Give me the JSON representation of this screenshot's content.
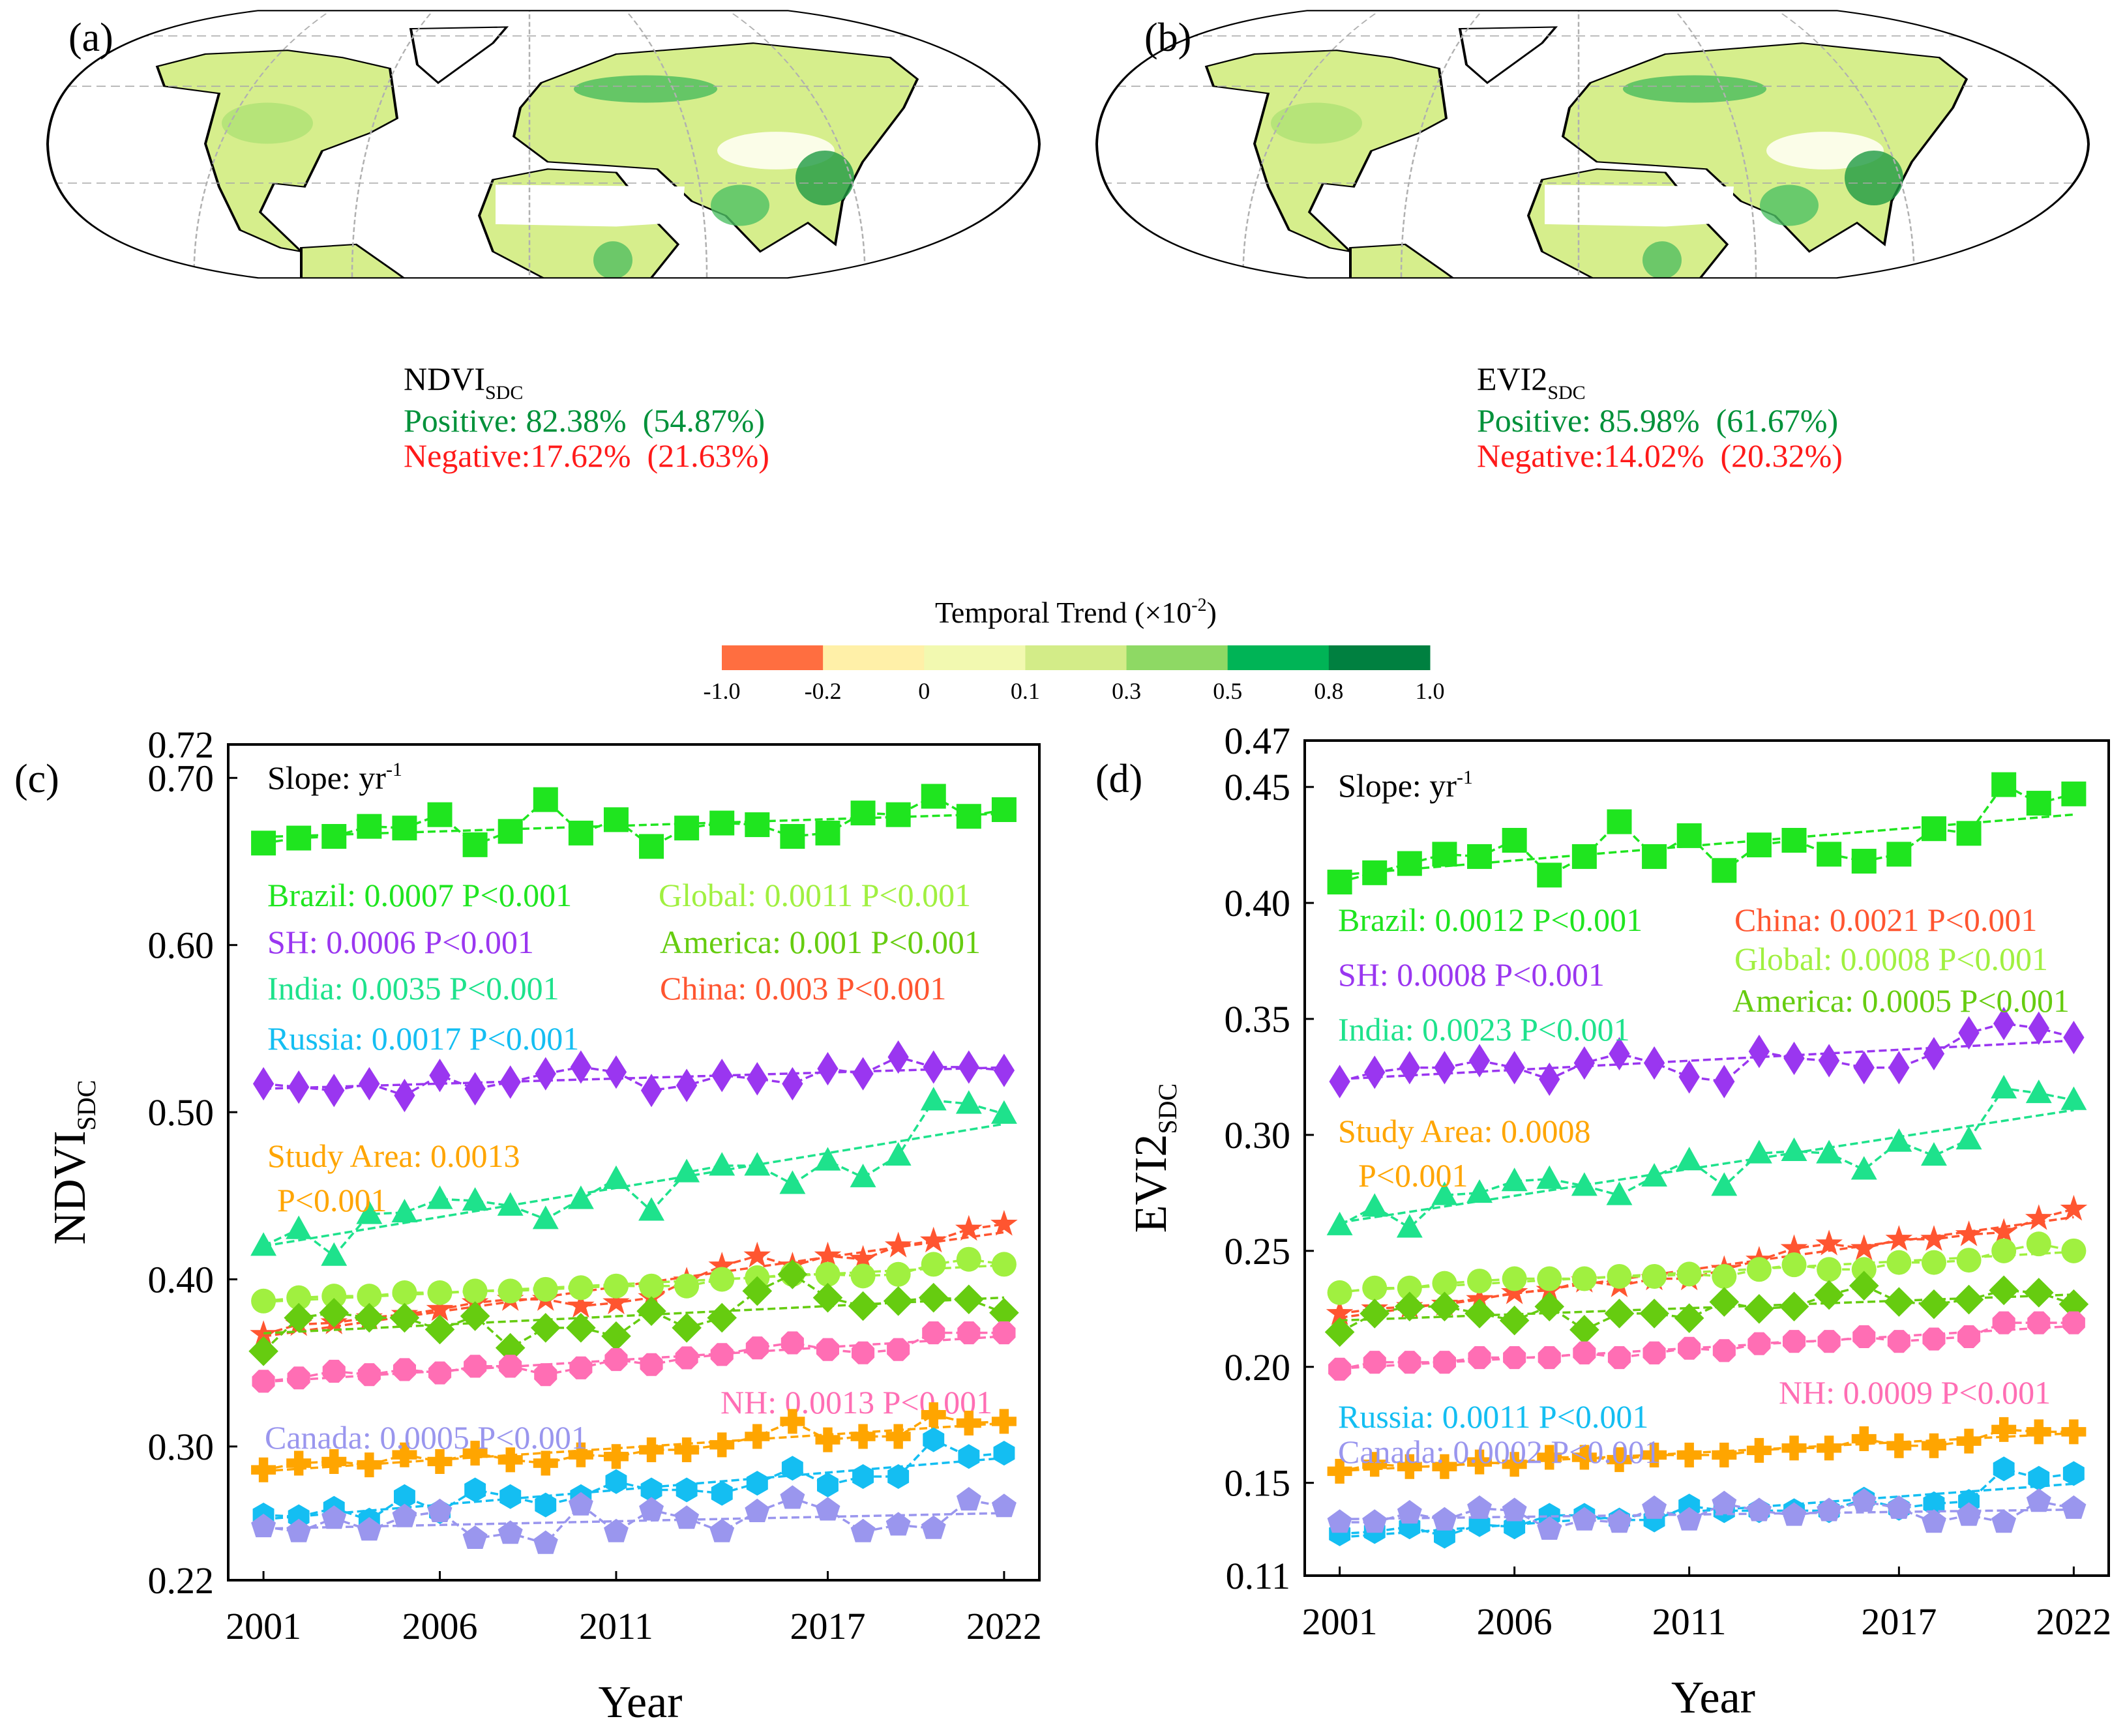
{
  "maps": [
    {
      "panel_label": "(a)",
      "index_name": "NDVI",
      "index_sub": "SDC",
      "positive": "Positive: 82.38%  (54.87%)",
      "negative": "Negative:17.62%  (21.63%)"
    },
    {
      "panel_label": "(b)",
      "index_name": "EVI2",
      "index_sub": "SDC",
      "positive": "Positive: 85.98%  (61.67%)",
      "negative": "Negative:14.02%  (20.32%)"
    }
  ],
  "colorbar": {
    "title": "Temporal Trend (×10",
    "title_exp": "-2",
    "title_close": ")",
    "labels": [
      "-1.0",
      "-0.2",
      "0",
      "0.1",
      "0.3",
      "0.5",
      "0.8",
      "1.0"
    ],
    "colors": [
      "#ff6e40",
      "#fff0a8",
      "#f2f9b0",
      "#d3ec88",
      "#8ed964",
      "#00b456",
      "#008040"
    ]
  },
  "text_colors": {
    "positive": "#00913a",
    "negative": "#ff1a1a"
  },
  "chart_data": [
    {
      "type": "line",
      "panel_label": "(c)",
      "ylabel": "NDVI",
      "ylabel_sub": "SDC",
      "xlabel": "Year",
      "ylim": [
        0.22,
        0.72
      ],
      "xlim": [
        2000,
        2023
      ],
      "yticks": [
        "0.22",
        "0.30",
        "0.40",
        "0.50",
        "0.60",
        "0.70",
        "0.72"
      ],
      "xticks": [
        "2001",
        "2006",
        "2011",
        "2017",
        "2022"
      ],
      "slope_label": "Slope: yr",
      "slope_exp": "-1",
      "x": [
        2001,
        2002,
        2003,
        2004,
        2005,
        2006,
        2007,
        2008,
        2009,
        2010,
        2011,
        2012,
        2013,
        2014,
        2015,
        2016,
        2017,
        2018,
        2019,
        2020,
        2021,
        2022
      ],
      "series": [
        {
          "name": "Brazil",
          "label": "Brazil: 0.0007  P<0.001",
          "color": "#1fe51f",
          "marker": "square",
          "values": [
            0.661,
            0.664,
            0.665,
            0.671,
            0.67,
            0.678,
            0.66,
            0.668,
            0.687,
            0.667,
            0.675,
            0.659,
            0.67,
            0.673,
            0.672,
            0.665,
            0.667,
            0.679,
            0.678,
            0.689,
            0.677,
            0.681
          ]
        },
        {
          "name": "SH",
          "label": "SH: 0.0006  P<0.001",
          "color": "#9a36f0",
          "marker": "diamond",
          "values": [
            0.517,
            0.515,
            0.513,
            0.517,
            0.51,
            0.522,
            0.514,
            0.518,
            0.523,
            0.527,
            0.524,
            0.513,
            0.516,
            0.522,
            0.52,
            0.517,
            0.526,
            0.523,
            0.533,
            0.527,
            0.527,
            0.525
          ]
        },
        {
          "name": "India",
          "label": "India: 0.0035  P<0.001",
          "color": "#1ee28c",
          "marker": "triangle",
          "values": [
            0.42,
            0.43,
            0.414,
            0.439,
            0.44,
            0.448,
            0.447,
            0.444,
            0.436,
            0.448,
            0.46,
            0.441,
            0.464,
            0.468,
            0.468,
            0.457,
            0.471,
            0.461,
            0.474,
            0.507,
            0.505,
            0.499
          ]
        },
        {
          "name": "China",
          "label": "China: 0.003  P<0.001",
          "color": "#ff5530",
          "marker": "star",
          "values": [
            0.367,
            0.373,
            0.374,
            0.377,
            0.379,
            0.382,
            0.386,
            0.388,
            0.388,
            0.384,
            0.386,
            0.389,
            0.399,
            0.408,
            0.414,
            0.408,
            0.414,
            0.412,
            0.42,
            0.423,
            0.43,
            0.433
          ]
        },
        {
          "name": "Global",
          "label": "Global: 0.0011 P<0.001",
          "color": "#a0f040",
          "marker": "circle",
          "values": [
            0.387,
            0.389,
            0.39,
            0.39,
            0.392,
            0.392,
            0.393,
            0.393,
            0.394,
            0.395,
            0.396,
            0.396,
            0.396,
            0.4,
            0.401,
            0.403,
            0.403,
            0.402,
            0.403,
            0.409,
            0.412,
            0.409
          ]
        },
        {
          "name": "America",
          "label": "America: 0.001  P<0.001",
          "color": "#66cc10",
          "marker": "diamond-wide",
          "values": [
            0.357,
            0.377,
            0.38,
            0.377,
            0.377,
            0.37,
            0.378,
            0.359,
            0.371,
            0.371,
            0.366,
            0.381,
            0.371,
            0.377,
            0.393,
            0.403,
            0.389,
            0.384,
            0.387,
            0.389,
            0.388,
            0.38
          ]
        },
        {
          "name": "NH",
          "label": "NH: 0.0013 P<0.001",
          "color": "#ff6eb4",
          "marker": "octagon",
          "values": [
            0.339,
            0.341,
            0.345,
            0.343,
            0.346,
            0.344,
            0.348,
            0.348,
            0.343,
            0.347,
            0.352,
            0.349,
            0.353,
            0.355,
            0.359,
            0.362,
            0.358,
            0.356,
            0.358,
            0.368,
            0.368,
            0.368
          ]
        },
        {
          "name": "Study Area",
          "label": "Study Area: 0.0013",
          "label2": "P<0.001",
          "color": "#ffa500",
          "marker": "plus",
          "values": [
            0.286,
            0.29,
            0.291,
            0.289,
            0.295,
            0.291,
            0.296,
            0.292,
            0.29,
            0.295,
            0.294,
            0.298,
            0.298,
            0.301,
            0.306,
            0.315,
            0.304,
            0.306,
            0.306,
            0.319,
            0.314,
            0.315
          ]
        },
        {
          "name": "Russia",
          "label": "Russia: 0.0017  P<0.001",
          "color": "#14bef2",
          "marker": "hexagon",
          "values": [
            0.259,
            0.258,
            0.263,
            0.256,
            0.27,
            0.261,
            0.274,
            0.27,
            0.265,
            0.27,
            0.279,
            0.274,
            0.274,
            0.272,
            0.278,
            0.287,
            0.277,
            0.282,
            0.282,
            0.304,
            0.294,
            0.296
          ]
        },
        {
          "name": "Canada",
          "label": "Canada: 0.0005  P<0.001",
          "color": "#9a96ee",
          "marker": "pentagon",
          "values": [
            0.252,
            0.249,
            0.257,
            0.25,
            0.258,
            0.261,
            0.245,
            0.248,
            0.242,
            0.265,
            0.249,
            0.262,
            0.257,
            0.249,
            0.261,
            0.269,
            0.262,
            0.249,
            0.253,
            0.251,
            0.268,
            0.264
          ]
        }
      ]
    },
    {
      "type": "line",
      "panel_label": "(d)",
      "ylabel": "EVI2",
      "ylabel_sub": "SDC",
      "xlabel": "Year",
      "ylim": [
        0.11,
        0.47
      ],
      "xlim": [
        2000,
        2023
      ],
      "yticks": [
        "0.11",
        "0.15",
        "0.20",
        "0.25",
        "0.30",
        "0.35",
        "0.40",
        "0.45",
        "0.47"
      ],
      "xticks": [
        "2001",
        "2006",
        "2011",
        "2017",
        "2022"
      ],
      "slope_label": "Slope: yr",
      "slope_exp": "-1",
      "x": [
        2001,
        2002,
        2003,
        2004,
        2005,
        2006,
        2007,
        2008,
        2009,
        2010,
        2011,
        2012,
        2013,
        2014,
        2015,
        2016,
        2017,
        2018,
        2019,
        2020,
        2021,
        2022
      ],
      "series": [
        {
          "name": "Brazil",
          "label": "Brazil: 0.0012  P<0.001",
          "color": "#1fe51f",
          "marker": "square",
          "values": [
            0.409,
            0.413,
            0.417,
            0.421,
            0.42,
            0.427,
            0.412,
            0.42,
            0.435,
            0.42,
            0.429,
            0.414,
            0.425,
            0.427,
            0.421,
            0.418,
            0.421,
            0.432,
            0.43,
            0.451,
            0.443,
            0.447
          ]
        },
        {
          "name": "SH",
          "label": "SH: 0.0008  P<0.001",
          "color": "#9a36f0",
          "marker": "diamond",
          "values": [
            0.323,
            0.327,
            0.329,
            0.329,
            0.332,
            0.329,
            0.324,
            0.331,
            0.335,
            0.331,
            0.325,
            0.323,
            0.336,
            0.333,
            0.332,
            0.329,
            0.329,
            0.335,
            0.344,
            0.348,
            0.346,
            0.342
          ]
        },
        {
          "name": "India",
          "label": "India: 0.0023  P<0.001",
          "color": "#1ee28c",
          "marker": "triangle",
          "values": [
            0.261,
            0.269,
            0.26,
            0.274,
            0.275,
            0.28,
            0.281,
            0.278,
            0.274,
            0.282,
            0.289,
            0.278,
            0.292,
            0.293,
            0.292,
            0.285,
            0.297,
            0.291,
            0.298,
            0.32,
            0.318,
            0.315
          ]
        },
        {
          "name": "China",
          "label": "China: 0.0021  P<0.001",
          "color": "#ff5530",
          "marker": "star",
          "values": [
            0.223,
            0.225,
            0.226,
            0.227,
            0.229,
            0.232,
            0.233,
            0.237,
            0.235,
            0.238,
            0.238,
            0.242,
            0.246,
            0.251,
            0.253,
            0.251,
            0.255,
            0.255,
            0.257,
            0.258,
            0.264,
            0.268
          ]
        },
        {
          "name": "Global",
          "label": "Global: 0.0008 P<0.001",
          "color": "#a0f040",
          "marker": "circle",
          "values": [
            0.232,
            0.234,
            0.234,
            0.236,
            0.237,
            0.238,
            0.238,
            0.238,
            0.239,
            0.239,
            0.24,
            0.239,
            0.242,
            0.244,
            0.242,
            0.242,
            0.245,
            0.245,
            0.246,
            0.25,
            0.253,
            0.25
          ]
        },
        {
          "name": "America",
          "label": "America: 0.0005 P<0.001",
          "color": "#66cc10",
          "marker": "diamond-wide",
          "values": [
            0.215,
            0.223,
            0.226,
            0.226,
            0.223,
            0.22,
            0.226,
            0.216,
            0.223,
            0.223,
            0.221,
            0.228,
            0.225,
            0.226,
            0.231,
            0.235,
            0.228,
            0.227,
            0.229,
            0.233,
            0.232,
            0.227
          ]
        },
        {
          "name": "NH",
          "label": "NH: 0.0009 P<0.001",
          "color": "#ff6eb4",
          "marker": "octagon",
          "values": [
            0.199,
            0.202,
            0.202,
            0.202,
            0.204,
            0.204,
            0.204,
            0.206,
            0.204,
            0.206,
            0.208,
            0.207,
            0.21,
            0.211,
            0.211,
            0.213,
            0.211,
            0.212,
            0.213,
            0.219,
            0.219,
            0.219
          ]
        },
        {
          "name": "Study Area",
          "label": "Study Area: 0.0008",
          "label2": "P<0.001",
          "color": "#ffa500",
          "marker": "plus",
          "values": [
            0.155,
            0.158,
            0.157,
            0.157,
            0.159,
            0.158,
            0.161,
            0.161,
            0.16,
            0.162,
            0.162,
            0.162,
            0.164,
            0.165,
            0.165,
            0.169,
            0.166,
            0.166,
            0.168,
            0.173,
            0.172,
            0.172
          ]
        },
        {
          "name": "Russia",
          "label": "Russia: 0.0011  P<0.001",
          "color": "#14bef2",
          "marker": "hexagon",
          "values": [
            0.128,
            0.129,
            0.131,
            0.127,
            0.132,
            0.131,
            0.136,
            0.136,
            0.134,
            0.134,
            0.14,
            0.138,
            0.138,
            0.138,
            0.138,
            0.143,
            0.139,
            0.141,
            0.142,
            0.156,
            0.152,
            0.154
          ]
        },
        {
          "name": "Canada",
          "label": "Canada: 0.0002  P<0.001",
          "color": "#9a96ee",
          "marker": "pentagon",
          "values": [
            0.133,
            0.133,
            0.137,
            0.134,
            0.139,
            0.138,
            0.13,
            0.134,
            0.133,
            0.139,
            0.134,
            0.141,
            0.138,
            0.136,
            0.138,
            0.142,
            0.139,
            0.133,
            0.136,
            0.133,
            0.142,
            0.139
          ]
        }
      ]
    }
  ]
}
